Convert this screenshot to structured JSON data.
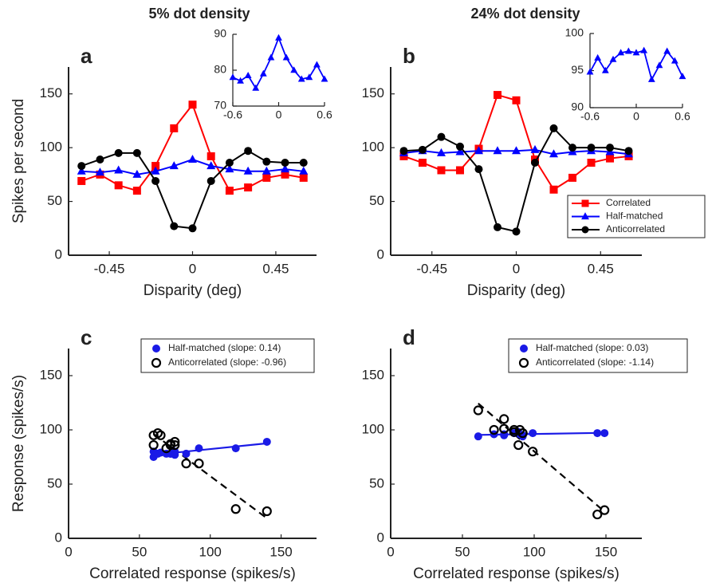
{
  "chart_data": [
    {
      "type": "line",
      "title": "5% dot density",
      "label": "a",
      "xlabel": "Disparity (deg)",
      "ylabel": "Spikes per second",
      "x": [
        -0.6,
        -0.5,
        -0.4,
        -0.3,
        -0.2,
        -0.1,
        0,
        0.1,
        0.2,
        0.3,
        0.4,
        0.5,
        0.6
      ],
      "xlim": [
        -0.67,
        0.67
      ],
      "xticks": [
        -0.45,
        0,
        0.45
      ],
      "ylim": [
        0,
        175
      ],
      "yticks": [
        0,
        50,
        100,
        150
      ],
      "series": [
        {
          "name": "Correlated",
          "color": "#ff0000",
          "marker": "square",
          "values": [
            69,
            75,
            65,
            60,
            83,
            118,
            140,
            92,
            60,
            63,
            72,
            75,
            72
          ]
        },
        {
          "name": "Half-matched",
          "color": "#0000ff",
          "marker": "triangle",
          "values": [
            78,
            77,
            79,
            75,
            78,
            83,
            89,
            83,
            80,
            78,
            78,
            80,
            78
          ]
        },
        {
          "name": "Anticorrelated",
          "color": "#000000",
          "marker": "circle",
          "values": [
            83,
            89,
            95,
            95,
            69,
            27,
            25,
            69,
            86,
            97,
            87,
            86,
            86
          ]
        }
      ]
    },
    {
      "type": "line",
      "x": [
        -0.6,
        -0.5,
        -0.4,
        -0.3,
        -0.2,
        -0.1,
        0,
        0.1,
        0.2,
        0.3,
        0.4,
        0.5,
        0.6
      ],
      "xlim": [
        -0.6,
        0.6
      ],
      "xticks": [
        -0.6,
        0,
        0.6
      ],
      "ylim": [
        70,
        90
      ],
      "yticks": [
        70,
        80,
        90
      ],
      "series": [
        {
          "color": "#0000ff",
          "marker": "triangle",
          "values": [
            78,
            77,
            78.5,
            75,
            79,
            83.5,
            89,
            83.5,
            80,
            77.5,
            78,
            81.5,
            77.5
          ]
        }
      ]
    },
    {
      "type": "line",
      "title": "24% dot density",
      "label": "b",
      "xlabel": "Disparity (deg)",
      "legend": "lower right",
      "x": [
        -0.6,
        -0.5,
        -0.4,
        -0.3,
        -0.2,
        -0.1,
        0,
        0.1,
        0.2,
        0.3,
        0.4,
        0.5,
        0.6
      ],
      "xlim": [
        -0.67,
        0.67
      ],
      "xticks": [
        -0.45,
        0,
        0.45
      ],
      "ylim": [
        0,
        175
      ],
      "yticks": [
        0,
        50,
        100,
        150
      ],
      "series": [
        {
          "name": "Correlated",
          "color": "#ff0000",
          "marker": "square",
          "values": [
            92,
            86,
            79,
            79,
            99,
            149,
            144,
            89,
            61,
            72,
            86,
            90,
            92
          ]
        },
        {
          "name": "Half-matched",
          "color": "#0000ff",
          "marker": "triangle",
          "values": [
            95,
            97,
            95,
            96,
            97,
            97,
            97,
            98,
            94,
            96,
            97,
            96,
            94
          ]
        },
        {
          "name": "Anticorrelated",
          "color": "#000000",
          "marker": "circle",
          "values": [
            97,
            98,
            110,
            101,
            80,
            26,
            22,
            86,
            118,
            100,
            100,
            100,
            97
          ]
        }
      ]
    },
    {
      "type": "line",
      "x": [
        -0.6,
        -0.5,
        -0.4,
        -0.3,
        -0.2,
        -0.1,
        0,
        0.1,
        0.2,
        0.3,
        0.4,
        0.5,
        0.6
      ],
      "xlim": [
        -0.6,
        0.6
      ],
      "xticks": [
        -0.6,
        0,
        0.6
      ],
      "ylim": [
        90,
        100
      ],
      "yticks": [
        90,
        95,
        100
      ],
      "series": [
        {
          "color": "#0000ff",
          "marker": "triangle",
          "values": [
            94.8,
            96.7,
            95,
            96.5,
            97.4,
            97.6,
            97.4,
            97.7,
            93.8,
            95.7,
            97.6,
            96.3,
            94.2
          ]
        }
      ]
    },
    {
      "type": "scatter",
      "label": "c",
      "xlabel": "Correlated response (spikes/s)",
      "ylabel": "Response (spikes/s)",
      "legend": "upper right",
      "xlim": [
        0,
        175
      ],
      "xticks": [
        0,
        50,
        100,
        150
      ],
      "ylim": [
        0,
        175
      ],
      "yticks": [
        0,
        50,
        100,
        150
      ],
      "series": [
        {
          "name": "Half-matched (slope: 0.14)",
          "color": "#1a1ae6",
          "marker": "filled",
          "line_style": "solid",
          "x": [
            69,
            75,
            65,
            60,
            83,
            118,
            140,
            92,
            60,
            63,
            72,
            75,
            72
          ],
          "values": [
            78,
            77,
            79,
            75,
            78,
            83,
            89,
            83,
            80,
            78,
            78,
            80,
            78
          ]
        },
        {
          "name": "Anticorrelated (slope: -0.96)",
          "color": "#000000",
          "marker": "open",
          "line_style": "dashed",
          "x": [
            69,
            75,
            65,
            60,
            83,
            118,
            140,
            92,
            60,
            63,
            72,
            75,
            72
          ],
          "values": [
            83,
            89,
            95,
            95,
            69,
            27,
            25,
            69,
            86,
            97,
            87,
            86,
            86
          ]
        }
      ]
    },
    {
      "type": "scatter",
      "label": "d",
      "xlabel": "Correlated response (spikes/s)",
      "legend": "upper right",
      "xlim": [
        0,
        175
      ],
      "xticks": [
        0,
        50,
        100,
        150
      ],
      "ylim": [
        0,
        175
      ],
      "yticks": [
        0,
        50,
        100,
        150
      ],
      "series": [
        {
          "name": "Half-matched (slope: 0.03)",
          "color": "#1a1ae6",
          "marker": "filled",
          "line_style": "solid",
          "x": [
            92,
            86,
            79,
            79,
            99,
            149,
            144,
            89,
            61,
            72,
            86,
            90,
            92
          ],
          "values": [
            95,
            97,
            95,
            96,
            97,
            97,
            97,
            98,
            94,
            96,
            97,
            96,
            94
          ]
        },
        {
          "name": "Anticorrelated (slope: -1.14)",
          "color": "#000000",
          "marker": "open",
          "line_style": "dashed",
          "x": [
            92,
            86,
            79,
            79,
            99,
            149,
            144,
            89,
            61,
            72,
            86,
            90,
            92
          ],
          "values": [
            97,
            98,
            110,
            101,
            80,
            26,
            22,
            86,
            118,
            100,
            100,
            100,
            97
          ]
        }
      ]
    }
  ]
}
